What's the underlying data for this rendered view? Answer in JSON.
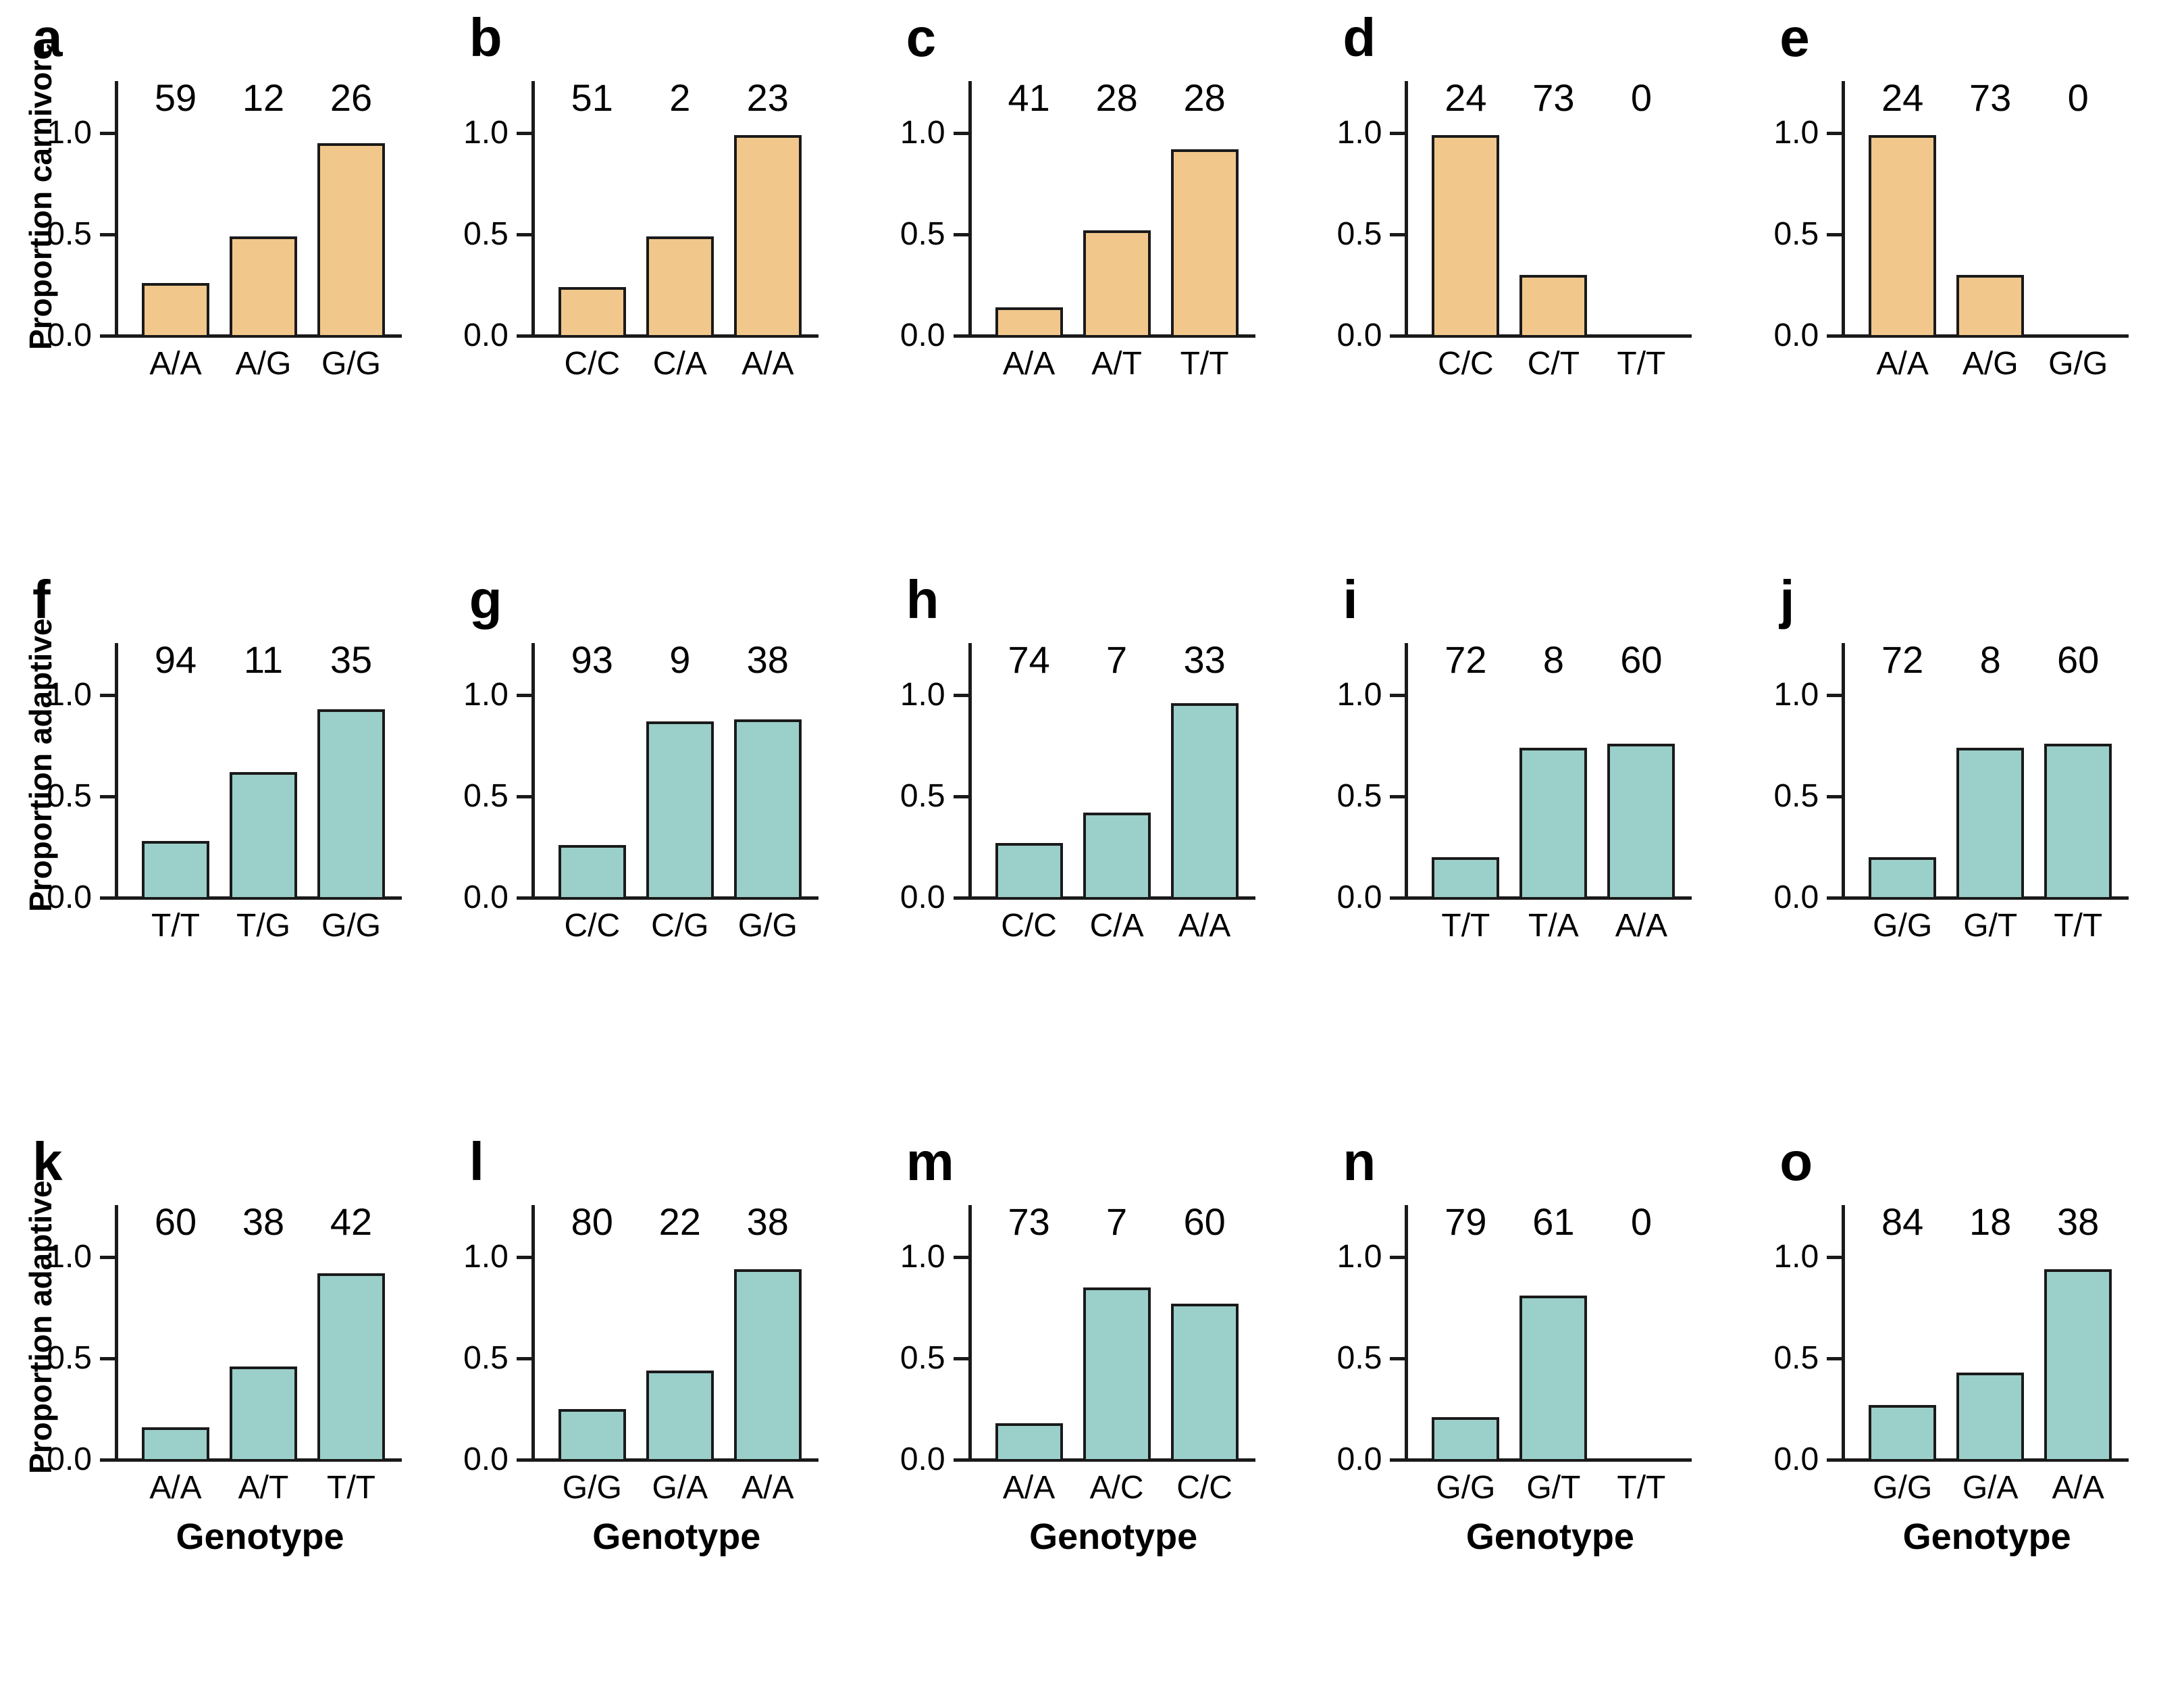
{
  "figure": {
    "xlabel": "Genotype",
    "yticks": [
      "0.0",
      "0.5",
      "1.0"
    ],
    "colors": {
      "carnivore_bar": "#F1C78C",
      "adaptive_bar": "#9BCFCA",
      "axis": "#1A1A1A",
      "background": "#FFFFFF"
    }
  },
  "chart_data": [
    {
      "panel": "a",
      "type": "bar",
      "row": 0,
      "col": 0,
      "ylabel": "Proportion carnivore",
      "xlabel": null,
      "categories": [
        "A/A",
        "A/G",
        "G/G"
      ],
      "values": [
        0.27,
        0.5,
        0.96
      ],
      "counts": [
        59,
        12,
        26
      ],
      "bar_color": "#F1C78C",
      "yticks": [
        "0.0",
        "0.5",
        "1.0"
      ],
      "ylim": [
        0,
        1.15
      ],
      "grid": false
    },
    {
      "panel": "b",
      "type": "bar",
      "row": 0,
      "col": 1,
      "ylabel": null,
      "xlabel": null,
      "categories": [
        "C/C",
        "C/A",
        "A/A"
      ],
      "values": [
        0.25,
        0.5,
        1.0
      ],
      "counts": [
        51,
        2,
        23
      ],
      "bar_color": "#F1C78C",
      "yticks": [
        "0.0",
        "0.5",
        "1.0"
      ],
      "ylim": [
        0,
        1.15
      ],
      "grid": false
    },
    {
      "panel": "c",
      "type": "bar",
      "row": 0,
      "col": 2,
      "ylabel": null,
      "xlabel": null,
      "categories": [
        "A/A",
        "A/T",
        "T/T"
      ],
      "values": [
        0.15,
        0.53,
        0.93
      ],
      "counts": [
        41,
        28,
        28
      ],
      "bar_color": "#F1C78C",
      "yticks": [
        "0.0",
        "0.5",
        "1.0"
      ],
      "ylim": [
        0,
        1.15
      ],
      "grid": false
    },
    {
      "panel": "d",
      "type": "bar",
      "row": 0,
      "col": 3,
      "ylabel": null,
      "xlabel": null,
      "categories": [
        "C/C",
        "C/T",
        "T/T"
      ],
      "values": [
        1.0,
        0.31,
        0
      ],
      "counts": [
        24,
        73,
        0
      ],
      "bar_color": "#F1C78C",
      "yticks": [
        "0.0",
        "0.5",
        "1.0"
      ],
      "ylim": [
        0,
        1.15
      ],
      "grid": false
    },
    {
      "panel": "e",
      "type": "bar",
      "row": 0,
      "col": 4,
      "ylabel": null,
      "xlabel": null,
      "categories": [
        "A/A",
        "A/G",
        "G/G"
      ],
      "values": [
        1.0,
        0.31,
        0
      ],
      "counts": [
        24,
        73,
        0
      ],
      "bar_color": "#F1C78C",
      "yticks": [
        "0.0",
        "0.5",
        "1.0"
      ],
      "ylim": [
        0,
        1.15
      ],
      "grid": false
    },
    {
      "panel": "f",
      "type": "bar",
      "row": 1,
      "col": 0,
      "ylabel": "Proportion adaptive",
      "xlabel": null,
      "categories": [
        "T/T",
        "T/G",
        "G/G"
      ],
      "values": [
        0.29,
        0.63,
        0.94
      ],
      "counts": [
        94,
        11,
        35
      ],
      "bar_color": "#9BCFCA",
      "yticks": [
        "0.0",
        "0.5",
        "1.0"
      ],
      "ylim": [
        0,
        1.15
      ],
      "grid": false
    },
    {
      "panel": "g",
      "type": "bar",
      "row": 1,
      "col": 1,
      "ylabel": null,
      "xlabel": null,
      "categories": [
        "C/C",
        "C/G",
        "G/G"
      ],
      "values": [
        0.27,
        0.88,
        0.89
      ],
      "counts": [
        93,
        9,
        38
      ],
      "bar_color": "#9BCFCA",
      "yticks": [
        "0.0",
        "0.5",
        "1.0"
      ],
      "ylim": [
        0,
        1.15
      ],
      "grid": false
    },
    {
      "panel": "h",
      "type": "bar",
      "row": 1,
      "col": 2,
      "ylabel": null,
      "xlabel": null,
      "categories": [
        "C/C",
        "C/A",
        "A/A"
      ],
      "values": [
        0.28,
        0.43,
        0.97
      ],
      "counts": [
        74,
        7,
        33
      ],
      "bar_color": "#9BCFCA",
      "yticks": [
        "0.0",
        "0.5",
        "1.0"
      ],
      "ylim": [
        0,
        1.15
      ],
      "grid": false
    },
    {
      "panel": "i",
      "type": "bar",
      "row": 1,
      "col": 3,
      "ylabel": null,
      "xlabel": null,
      "categories": [
        "T/T",
        "T/A",
        "A/A"
      ],
      "values": [
        0.21,
        0.75,
        0.77
      ],
      "counts": [
        72,
        8,
        60
      ],
      "bar_color": "#9BCFCA",
      "yticks": [
        "0.0",
        "0.5",
        "1.0"
      ],
      "ylim": [
        0,
        1.15
      ],
      "grid": false
    },
    {
      "panel": "j",
      "type": "bar",
      "row": 1,
      "col": 4,
      "ylabel": null,
      "xlabel": null,
      "categories": [
        "G/G",
        "G/T",
        "T/T"
      ],
      "values": [
        0.21,
        0.75,
        0.77
      ],
      "counts": [
        72,
        8,
        60
      ],
      "bar_color": "#9BCFCA",
      "yticks": [
        "0.0",
        "0.5",
        "1.0"
      ],
      "ylim": [
        0,
        1.15
      ],
      "grid": false
    },
    {
      "panel": "k",
      "type": "bar",
      "row": 2,
      "col": 0,
      "ylabel": "Proportion adaptive",
      "xlabel": "Genotype",
      "categories": [
        "A/A",
        "A/T",
        "T/T"
      ],
      "values": [
        0.17,
        0.47,
        0.93
      ],
      "counts": [
        60,
        38,
        42
      ],
      "bar_color": "#9BCFCA",
      "yticks": [
        "0.0",
        "0.5",
        "1.0"
      ],
      "ylim": [
        0,
        1.15
      ],
      "grid": false
    },
    {
      "panel": "l",
      "type": "bar",
      "row": 2,
      "col": 1,
      "ylabel": null,
      "xlabel": "Genotype",
      "categories": [
        "G/G",
        "G/A",
        "A/A"
      ],
      "values": [
        0.26,
        0.45,
        0.95
      ],
      "counts": [
        80,
        22,
        38
      ],
      "bar_color": "#9BCFCA",
      "yticks": [
        "0.0",
        "0.5",
        "1.0"
      ],
      "ylim": [
        0,
        1.15
      ],
      "grid": false
    },
    {
      "panel": "m",
      "type": "bar",
      "row": 2,
      "col": 2,
      "ylabel": null,
      "xlabel": "Genotype",
      "categories": [
        "A/A",
        "A/C",
        "C/C"
      ],
      "values": [
        0.19,
        0.86,
        0.78
      ],
      "counts": [
        73,
        7,
        60
      ],
      "bar_color": "#9BCFCA",
      "yticks": [
        "0.0",
        "0.5",
        "1.0"
      ],
      "ylim": [
        0,
        1.15
      ],
      "grid": false
    },
    {
      "panel": "n",
      "type": "bar",
      "row": 2,
      "col": 3,
      "ylabel": null,
      "xlabel": "Genotype",
      "categories": [
        "G/G",
        "G/T",
        "T/T"
      ],
      "values": [
        0.22,
        0.82,
        0
      ],
      "counts": [
        79,
        61,
        0
      ],
      "bar_color": "#9BCFCA",
      "yticks": [
        "0.0",
        "0.5",
        "1.0"
      ],
      "ylim": [
        0,
        1.15
      ],
      "grid": false
    },
    {
      "panel": "o",
      "type": "bar",
      "row": 2,
      "col": 4,
      "ylabel": null,
      "xlabel": "Genotype",
      "categories": [
        "G/G",
        "G/A",
        "A/A"
      ],
      "values": [
        0.28,
        0.44,
        0.95
      ],
      "counts": [
        84,
        18,
        38
      ],
      "bar_color": "#9BCFCA",
      "yticks": [
        "0.0",
        "0.5",
        "1.0"
      ],
      "ylim": [
        0,
        1.15
      ],
      "grid": false
    }
  ]
}
